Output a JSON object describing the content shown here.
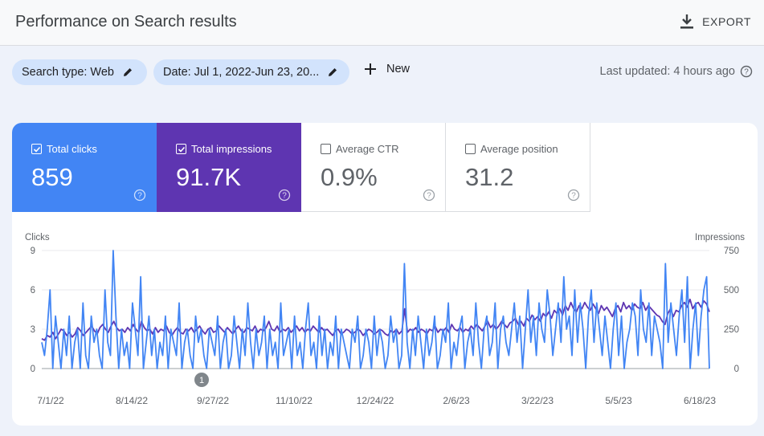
{
  "header": {
    "title": "Performance on Search results",
    "export_label": "EXPORT"
  },
  "filters": {
    "search_type": "Search type: Web",
    "date": "Date: Jul 1, 2022-Jun 23, 20...",
    "new_label": "New",
    "last_updated": "Last updated: 4 hours ago"
  },
  "metrics": [
    {
      "label": "Total clicks",
      "value": "859",
      "checked": true,
      "color": "#4285f4"
    },
    {
      "label": "Total impressions",
      "value": "91.7K",
      "checked": true,
      "color": "#5e35b1"
    },
    {
      "label": "Average CTR",
      "value": "0.9%",
      "checked": false
    },
    {
      "label": "Average position",
      "value": "31.2",
      "checked": false
    }
  ],
  "chart_data": {
    "type": "line",
    "y_left_label": "Clicks",
    "y_right_label": "Impressions",
    "y_left_ticks": [
      "9",
      "6",
      "3",
      "0"
    ],
    "y_right_ticks": [
      "750",
      "500",
      "250",
      "0"
    ],
    "ylim_left": [
      0,
      9
    ],
    "ylim_right": [
      0,
      750
    ],
    "x_ticks": [
      "7/1/22",
      "8/14/22",
      "9/27/22",
      "11/10/22",
      "12/24/22",
      "2/6/23",
      "3/22/23",
      "5/5/23",
      "6/18/23"
    ],
    "annotation": {
      "label": "1",
      "date": "9/23/22"
    },
    "series": [
      {
        "name": "Clicks",
        "color": "#4285f4",
        "values": [
          2,
          1,
          3,
          6,
          0,
          4,
          2,
          0,
          3,
          1,
          4,
          0,
          2,
          3,
          0,
          5,
          1,
          0,
          4,
          2,
          3,
          1,
          0,
          6,
          2,
          1,
          9,
          4,
          0,
          3,
          1,
          2,
          0,
          5,
          3,
          1,
          7,
          0,
          2,
          4,
          1,
          3,
          0,
          2,
          1,
          4,
          0,
          3,
          2,
          1,
          5,
          0,
          2,
          3,
          1,
          0,
          4,
          2,
          3,
          1,
          0,
          3,
          2,
          1,
          4,
          0,
          2,
          3,
          0,
          1,
          4,
          2,
          0,
          3,
          1,
          5,
          2,
          0,
          3,
          1,
          2,
          4,
          0,
          3,
          1,
          2,
          0,
          5,
          1,
          2,
          3,
          0,
          4,
          1,
          2,
          0,
          3,
          5,
          1,
          2,
          0,
          4,
          1,
          3,
          0,
          2,
          1,
          4,
          0,
          3,
          2,
          1,
          0,
          3,
          2,
          4,
          0,
          1,
          3,
          2,
          0,
          4,
          1,
          3,
          2,
          0,
          1,
          4,
          2,
          3,
          0,
          1,
          8,
          2,
          0,
          3,
          1,
          4,
          2,
          0,
          3,
          1,
          2,
          4,
          0,
          1,
          3,
          2,
          5,
          0,
          2,
          1,
          3,
          4,
          0,
          2,
          3,
          1,
          5,
          2,
          0,
          3,
          4,
          1,
          2,
          5,
          0,
          3,
          4,
          2,
          1,
          3,
          5,
          2,
          4,
          0,
          3,
          6,
          2,
          4,
          1,
          5,
          3,
          2,
          6,
          4,
          1,
          3,
          5,
          2,
          7,
          3,
          4,
          1,
          6,
          2,
          5,
          3,
          0,
          4,
          6,
          2,
          5,
          3,
          1,
          4,
          2,
          0,
          3,
          5,
          1,
          4,
          0,
          2,
          3,
          5,
          4,
          1,
          6,
          3,
          2,
          5,
          1,
          4,
          3,
          2,
          0,
          8,
          2,
          5,
          3,
          1,
          4,
          6,
          2,
          7,
          0,
          3,
          5,
          1,
          4,
          6,
          7,
          0
        ]
      },
      {
        "name": "Impressions",
        "color": "#5e35b1",
        "values": [
          190,
          180,
          210,
          200,
          230,
          190,
          220,
          250,
          240,
          210,
          230,
          200,
          220,
          260,
          240,
          210,
          230,
          250,
          270,
          240,
          220,
          260,
          280,
          250,
          230,
          270,
          300,
          260,
          240,
          250,
          230,
          260,
          240,
          280,
          250,
          230,
          300,
          260,
          240,
          250,
          220,
          260,
          230,
          250,
          240,
          270,
          230,
          210,
          240,
          260,
          230,
          220,
          250,
          240,
          260,
          230,
          250,
          270,
          240,
          220,
          250,
          260,
          230,
          240,
          270,
          250,
          230,
          260,
          240,
          220,
          250,
          270,
          240,
          230,
          260,
          250,
          240,
          270,
          230,
          250,
          240,
          260,
          300,
          250,
          240,
          270,
          230,
          250,
          240,
          260,
          230,
          250,
          270,
          240,
          260,
          230,
          250,
          240,
          270,
          250,
          230,
          260,
          240,
          250,
          230,
          210,
          240,
          250,
          220,
          230,
          250,
          240,
          220,
          230,
          250,
          240,
          210,
          230,
          250,
          240,
          220,
          230,
          250,
          240,
          220,
          210,
          240,
          230,
          250,
          220,
          240,
          380,
          230,
          250,
          240,
          260,
          230,
          250,
          240,
          220,
          250,
          240,
          270,
          230,
          250,
          240,
          260,
          230,
          280,
          250,
          240,
          260,
          230,
          250,
          240,
          270,
          250,
          280,
          260,
          240,
          270,
          300,
          260,
          280,
          250,
          270,
          300,
          280,
          260,
          290,
          300,
          320,
          280,
          300,
          270,
          320,
          300,
          340,
          310,
          330,
          300,
          350,
          330,
          360,
          320,
          370,
          350,
          380,
          340,
          400,
          370,
          420,
          380,
          360,
          400,
          380,
          420,
          390,
          370,
          410,
          380,
          350,
          400,
          370,
          390,
          360,
          330,
          380,
          400,
          360,
          420,
          380,
          400,
          370,
          410,
          390,
          380,
          420,
          370,
          400,
          380,
          360,
          340,
          330,
          300,
          280,
          350,
          380,
          330,
          370,
          360,
          400,
          420,
          390,
          440,
          380,
          410,
          420,
          390,
          430,
          410,
          360
        ]
      }
    ]
  }
}
